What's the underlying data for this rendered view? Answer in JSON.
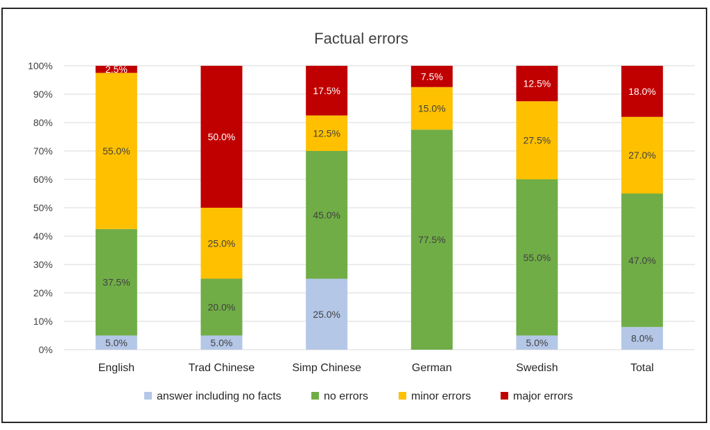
{
  "chart_data": {
    "type": "bar",
    "stacked": true,
    "title": "Factual errors",
    "categories": [
      "English",
      "Trad Chinese",
      "Simp Chinese",
      "German",
      "Swedish",
      "Total"
    ],
    "series": [
      {
        "name": "answer including no facts",
        "color": "#b4c7e7",
        "values": [
          5.0,
          5.0,
          25.0,
          0.0,
          5.0,
          8.0
        ],
        "labels": [
          "5.0%",
          "5.0%",
          "25.0%",
          "",
          "5.0%",
          "8.0%"
        ]
      },
      {
        "name": "no errors",
        "color": "#70ad47",
        "values": [
          37.5,
          20.0,
          45.0,
          77.5,
          55.0,
          47.0
        ],
        "labels": [
          "37.5%",
          "20.0%",
          "45.0%",
          "77.5%",
          "55.0%",
          "47.0%"
        ]
      },
      {
        "name": "minor errors",
        "color": "#ffc000",
        "values": [
          55.0,
          25.0,
          12.5,
          15.0,
          27.5,
          27.0
        ],
        "labels": [
          "55.0%",
          "25.0%",
          "12.5%",
          "15.0%",
          "27.5%",
          "27.0%"
        ]
      },
      {
        "name": "major errors",
        "color": "#c00000",
        "values": [
          2.5,
          50.0,
          17.5,
          7.5,
          12.5,
          18.0
        ],
        "labels": [
          "2.5%",
          "50.0%",
          "17.5%",
          "7.5%",
          "12.5%",
          "18.0%"
        ]
      }
    ],
    "label_colors": [
      "#404040",
      "#404040",
      "#404040",
      "#ffffff"
    ],
    "y_ticks": [
      "0%",
      "10%",
      "20%",
      "30%",
      "40%",
      "50%",
      "60%",
      "70%",
      "80%",
      "90%",
      "100%"
    ],
    "ylim": [
      0,
      100
    ],
    "grid": true,
    "legend_position": "bottom"
  }
}
